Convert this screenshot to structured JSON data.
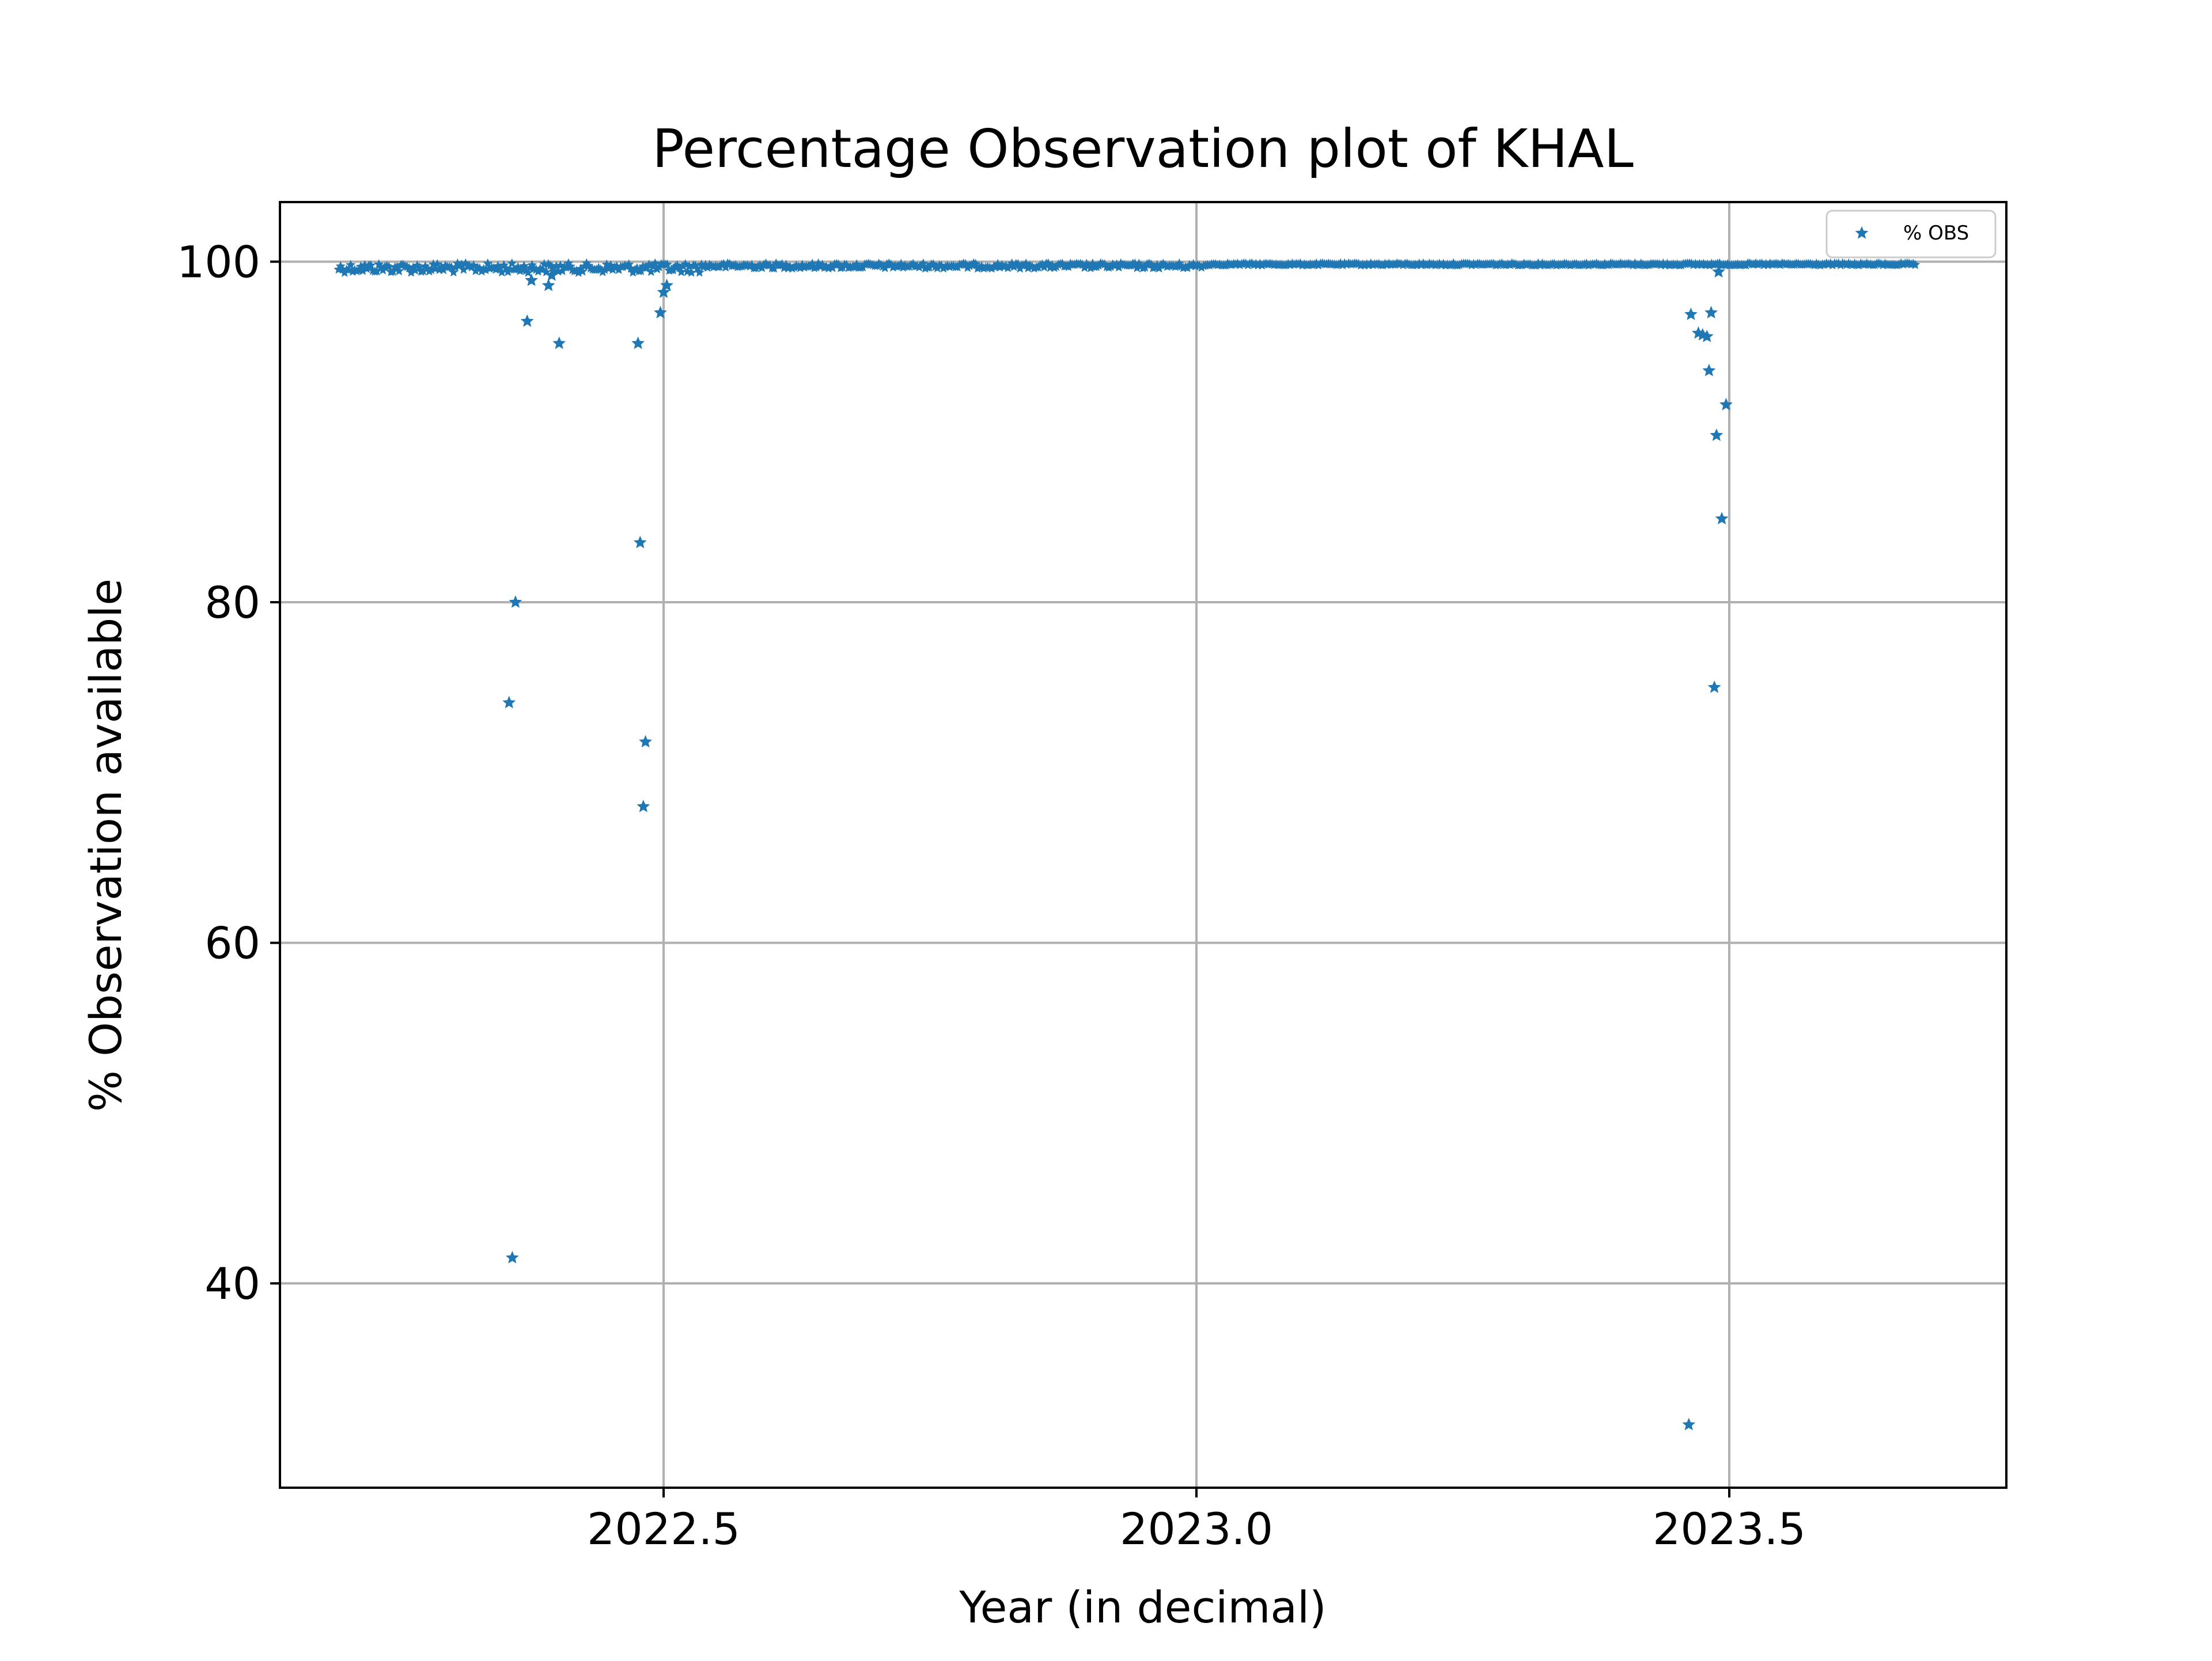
{
  "chart_data": {
    "type": "scatter",
    "title": "Percentage Observation plot of KHAL",
    "xlabel": "Year (in decimal)",
    "ylabel": "% Observation available",
    "xlim": [
      2022.14,
      2023.76
    ],
    "ylim": [
      28.0,
      103.5
    ],
    "xticks": [
      2022.5,
      2023.0,
      2023.5
    ],
    "xtick_labels": [
      "2022.5",
      "2023.0",
      "2023.5"
    ],
    "yticks": [
      40,
      60,
      80,
      100
    ],
    "ytick_labels": [
      "40",
      "60",
      "80",
      "100"
    ],
    "grid": true,
    "legend": {
      "position": "top-right",
      "entries": [
        "% OBS"
      ]
    },
    "marker": "star",
    "color": "#1f77b4",
    "series": [
      {
        "name": "% OBS",
        "dense_band": {
          "x_start": 2022.195,
          "x_end": 2023.675,
          "y_typical": 99.9
        },
        "outliers": [
          [
            2022.355,
            74.1
          ],
          [
            2022.358,
            41.5
          ],
          [
            2022.361,
            80.0
          ],
          [
            2022.372,
            96.5
          ],
          [
            2022.376,
            98.9
          ],
          [
            2022.392,
            98.6
          ],
          [
            2022.395,
            99.2
          ],
          [
            2022.402,
            95.2
          ],
          [
            2022.476,
            95.2
          ],
          [
            2022.478,
            83.5
          ],
          [
            2022.481,
            68.0
          ],
          [
            2022.483,
            71.8
          ],
          [
            2022.497,
            97.0
          ],
          [
            2022.5,
            98.2
          ],
          [
            2022.503,
            98.6
          ],
          [
            2023.462,
            31.7
          ],
          [
            2023.464,
            96.9
          ],
          [
            2023.471,
            95.8
          ],
          [
            2023.475,
            95.7
          ],
          [
            2023.479,
            95.6
          ],
          [
            2023.481,
            93.6
          ],
          [
            2023.483,
            97.0
          ],
          [
            2023.486,
            75.0
          ],
          [
            2023.488,
            89.8
          ],
          [
            2023.49,
            99.4
          ],
          [
            2023.493,
            84.9
          ],
          [
            2023.497,
            91.6
          ]
        ]
      }
    ]
  }
}
